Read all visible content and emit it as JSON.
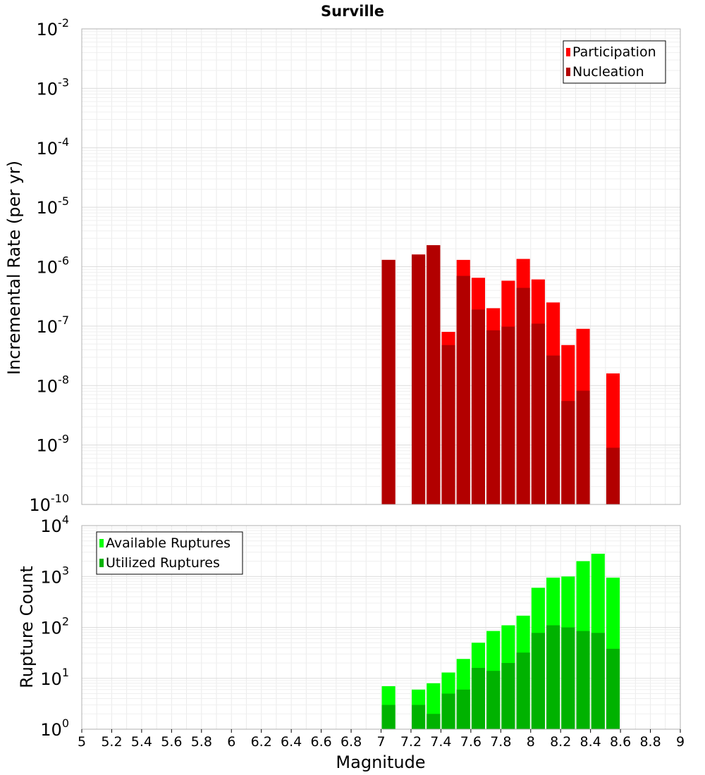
{
  "chart_data": [
    {
      "type": "bar",
      "title": "Surville",
      "ylabel": "Incremental Rate (per yr)",
      "yscale": "log",
      "ylim_exponents": [
        -10,
        -2
      ],
      "xlim": [
        5,
        9
      ],
      "grid": true,
      "legend_placement": "top-right",
      "x": [
        7.05,
        7.25,
        7.35,
        7.45,
        7.55,
        7.65,
        7.75,
        7.85,
        7.95,
        8.05,
        8.15,
        8.25,
        8.35,
        8.55
      ],
      "series": [
        {
          "name": "Participation",
          "color": "#ff0000",
          "values": [
            1.3e-06,
            1.6e-06,
            2.3e-06,
            8e-08,
            1.3e-06,
            6.5e-07,
            2e-07,
            5.8e-07,
            1.35e-06,
            6.1e-07,
            2.5e-07,
            4.8e-08,
            9e-08,
            1.6e-08
          ]
        },
        {
          "name": "Nucleation",
          "color": "#b20000",
          "values": [
            1.3e-06,
            1.6e-06,
            2.3e-06,
            4.8e-08,
            7e-07,
            1.9e-07,
            8.5e-08,
            9.8e-08,
            4.4e-07,
            1.1e-07,
            3.2e-08,
            5.5e-09,
            8.2e-09,
            9e-10
          ]
        }
      ]
    },
    {
      "type": "bar",
      "xlabel": "Magnitude",
      "ylabel": "Rupture Count",
      "yscale": "log",
      "ylim_exponents": [
        0,
        4
      ],
      "xlim": [
        5,
        9
      ],
      "grid": true,
      "legend_placement": "top-left",
      "x_ticks": [
        "5",
        "5.2",
        "5.4",
        "5.6",
        "5.8",
        "6",
        "6.2",
        "6.4",
        "6.6",
        "6.8",
        "7",
        "7.2",
        "7.4",
        "7.6",
        "7.8",
        "8",
        "8.2",
        "8.4",
        "8.6",
        "8.8",
        "9"
      ],
      "x": [
        7.05,
        7.25,
        7.35,
        7.45,
        7.55,
        7.65,
        7.75,
        7.85,
        7.95,
        8.05,
        8.15,
        8.25,
        8.35,
        8.45,
        8.55
      ],
      "series": [
        {
          "name": "Available Ruptures",
          "color": "#00ff00",
          "values": [
            7,
            6,
            8,
            13,
            24,
            50,
            85,
            110,
            170,
            600,
            950,
            1000,
            2000,
            2800,
            950
          ]
        },
        {
          "name": "Utilized Ruptures",
          "color": "#00b200",
          "values": [
            3,
            3,
            2,
            5,
            6,
            16,
            14,
            20,
            32,
            78,
            110,
            100,
            85,
            78,
            38
          ]
        }
      ]
    }
  ]
}
